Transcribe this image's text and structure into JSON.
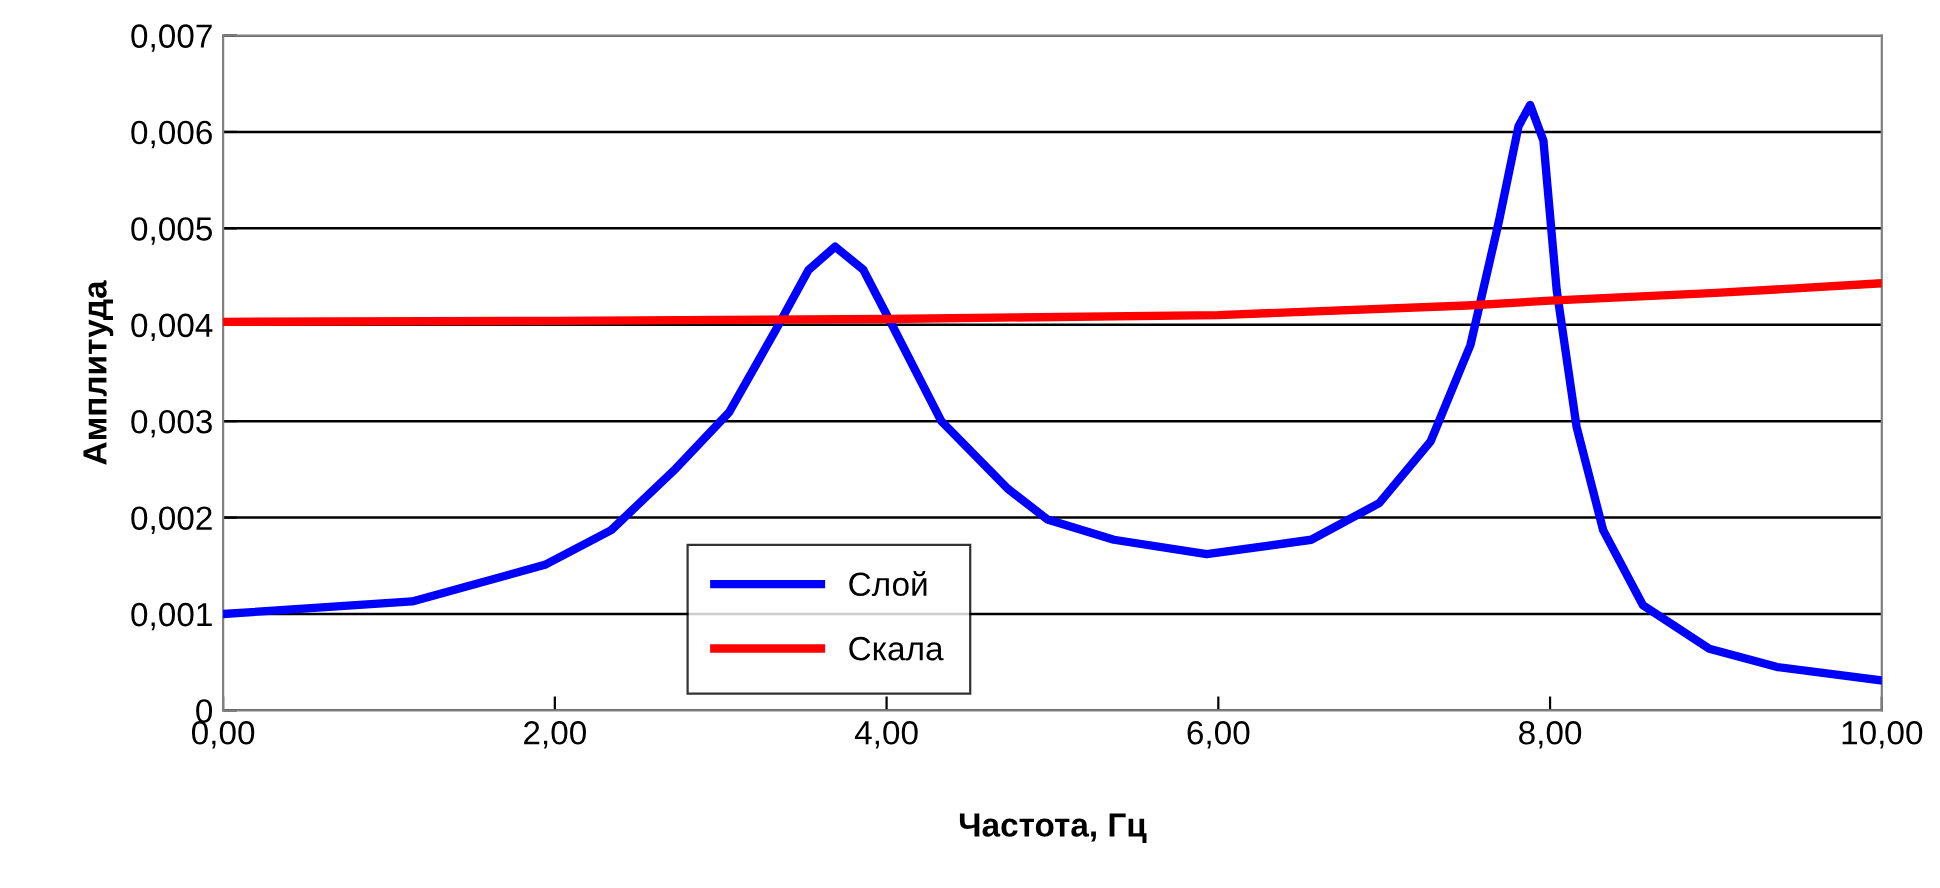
{
  "chart_data": {
    "type": "line",
    "xlabel": "Частота, Гц",
    "ylabel": "Амплитуда",
    "xlim": [
      0,
      10
    ],
    "xticks": [
      {
        "value": 0,
        "label": "0,00"
      },
      {
        "value": 2,
        "label": "2,00"
      },
      {
        "value": 4,
        "label": "4,00"
      },
      {
        "value": 6,
        "label": "6,00"
      },
      {
        "value": 8,
        "label": "8,00"
      },
      {
        "value": 10,
        "label": "10,00"
      }
    ],
    "ylim": [
      0,
      0.007
    ],
    "yticks": [
      {
        "value": 0,
        "label": "0"
      },
      {
        "value": 0.001,
        "label": "0,001"
      },
      {
        "value": 0.002,
        "label": "0,002"
      },
      {
        "value": 0.003,
        "label": "0,003"
      },
      {
        "value": 0.004,
        "label": "0,004"
      },
      {
        "value": 0.005,
        "label": "0,005"
      },
      {
        "value": 0.006,
        "label": "0,006"
      },
      {
        "value": 0.007,
        "label": "0,007"
      }
    ],
    "grid": "y",
    "legend": "bottom",
    "marker": "none",
    "line_style": "solid",
    "series": [
      {
        "name": "Слой",
        "color": "#0000ff",
        "x": [
          0,
          1.14,
          1.94,
          2.34,
          2.73,
          3.05,
          3.33,
          3.53,
          3.69,
          3.86,
          4.05,
          4.33,
          4.73,
          4.97,
          5.37,
          5.93,
          6.56,
          6.97,
          7.28,
          7.52,
          7.69,
          7.81,
          7.88,
          7.96,
          8.04,
          8.16,
          8.32,
          8.56,
          8.96,
          9.37,
          10
        ],
        "values": [
          0.001,
          0.00113,
          0.00151,
          0.00187,
          0.00251,
          0.00309,
          0.00394,
          0.00457,
          0.00481,
          0.00457,
          0.00394,
          0.003,
          0.0023,
          0.00198,
          0.00177,
          0.00162,
          0.00177,
          0.00215,
          0.00279,
          0.00379,
          0.00506,
          0.00606,
          0.00628,
          0.00591,
          0.00436,
          0.00294,
          0.00187,
          0.00109,
          0.00064,
          0.00045,
          0.00031
        ]
      },
      {
        "name": "Скала",
        "color": "#ff0000",
        "x": [
          0,
          2,
          4,
          6,
          7.5,
          8,
          9,
          10
        ],
        "values": [
          0.00403,
          0.00404,
          0.00406,
          0.0041,
          0.0042,
          0.00425,
          0.00433,
          0.00443
        ]
      }
    ]
  }
}
